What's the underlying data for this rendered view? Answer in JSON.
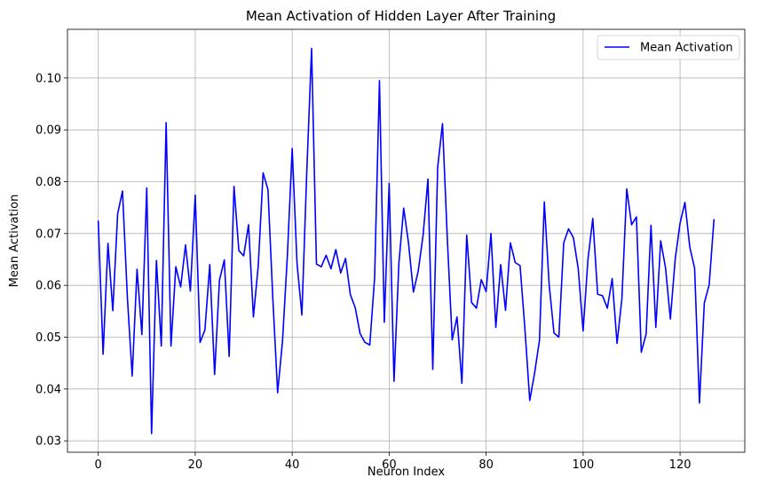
{
  "chart_data": {
    "type": "line",
    "title": "Mean Activation of Hidden Layer After Training",
    "xlabel": "Neuron Index",
    "ylabel": "Mean Activation",
    "xlim": [
      -6.35,
      133.35
    ],
    "ylim": [
      0.0278,
      0.1094
    ],
    "xticks": [
      0,
      20,
      40,
      60,
      80,
      100,
      120
    ],
    "xtick_labels": [
      "0",
      "20",
      "40",
      "60",
      "80",
      "100",
      "120"
    ],
    "yticks": [
      0.03,
      0.04,
      0.05,
      0.06,
      0.07,
      0.08,
      0.09,
      0.1
    ],
    "ytick_labels": [
      "0.03",
      "0.04",
      "0.05",
      "0.06",
      "0.07",
      "0.08",
      "0.09",
      "0.10"
    ],
    "grid": true,
    "legend_position": "top-right",
    "series": [
      {
        "name": "Mean Activation",
        "color": "#0000ff",
        "x": [
          0,
          1,
          2,
          3,
          4,
          5,
          6,
          7,
          8,
          9,
          10,
          11,
          12,
          13,
          14,
          15,
          16,
          17,
          18,
          19,
          20,
          21,
          22,
          23,
          24,
          25,
          26,
          27,
          28,
          29,
          30,
          31,
          32,
          33,
          34,
          35,
          36,
          37,
          38,
          39,
          40,
          41,
          42,
          43,
          44,
          45,
          46,
          47,
          48,
          49,
          50,
          51,
          52,
          53,
          54,
          55,
          56,
          57,
          58,
          59,
          60,
          61,
          62,
          63,
          64,
          65,
          66,
          67,
          68,
          69,
          70,
          71,
          72,
          73,
          74,
          75,
          76,
          77,
          78,
          79,
          80,
          81,
          82,
          83,
          84,
          85,
          86,
          87,
          88,
          89,
          90,
          91,
          92,
          93,
          94,
          95,
          96,
          97,
          98,
          99,
          100,
          101,
          102,
          103,
          104,
          105,
          106,
          107,
          108,
          109,
          110,
          111,
          112,
          113,
          114,
          115,
          116,
          117,
          118,
          119,
          120,
          121,
          122,
          123,
          124,
          125,
          126,
          127
        ],
        "values": [
          0.0725,
          0.0467,
          0.0681,
          0.0551,
          0.0738,
          0.0782,
          0.0578,
          0.0425,
          0.0631,
          0.0505,
          0.0788,
          0.0314,
          0.0648,
          0.0483,
          0.0914,
          0.0483,
          0.0636,
          0.0597,
          0.0678,
          0.0589,
          0.0774,
          0.049,
          0.0514,
          0.064,
          0.0428,
          0.061,
          0.0649,
          0.0463,
          0.0791,
          0.0667,
          0.0657,
          0.0717,
          0.0539,
          0.0638,
          0.0817,
          0.0785,
          0.0576,
          0.0393,
          0.0492,
          0.0656,
          0.0864,
          0.0642,
          0.0543,
          0.0817,
          0.1057,
          0.0641,
          0.0636,
          0.0658,
          0.0632,
          0.0669,
          0.0624,
          0.0652,
          0.0582,
          0.0557,
          0.0507,
          0.049,
          0.0485,
          0.0614,
          0.0995,
          0.0529,
          0.0797,
          0.0415,
          0.0642,
          0.0749,
          0.0681,
          0.0587,
          0.0628,
          0.0697,
          0.0805,
          0.0438,
          0.0827,
          0.0912,
          0.0689,
          0.0495,
          0.0539,
          0.0411,
          0.0697,
          0.0567,
          0.0556,
          0.0611,
          0.0588,
          0.07,
          0.0519,
          0.064,
          0.0552,
          0.0682,
          0.0644,
          0.0638,
          0.0516,
          0.0378,
          0.0431,
          0.0494,
          0.0761,
          0.0601,
          0.0508,
          0.05,
          0.0682,
          0.0709,
          0.0692,
          0.0632,
          0.0512,
          0.065,
          0.0729,
          0.0583,
          0.058,
          0.0556,
          0.0613,
          0.0488,
          0.0574,
          0.0786,
          0.0717,
          0.0732,
          0.0471,
          0.0506,
          0.0716,
          0.0519,
          0.0686,
          0.0634,
          0.0535,
          0.0651,
          0.072,
          0.076,
          0.0674,
          0.0633,
          0.0373,
          0.0566,
          0.0601,
          0.0728
        ]
      }
    ]
  }
}
